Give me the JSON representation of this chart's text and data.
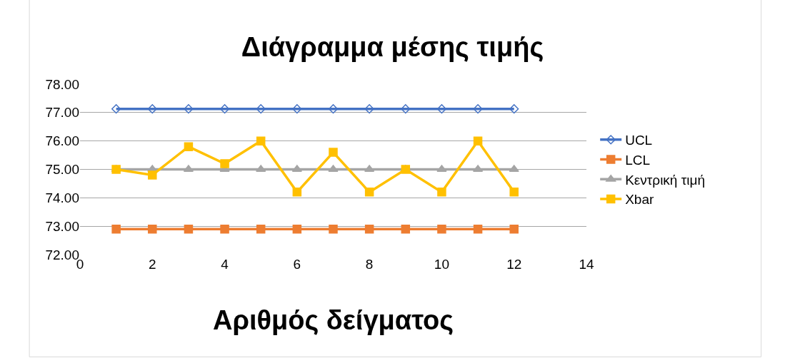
{
  "chart_data": {
    "type": "line",
    "title": "Διάγραμμα μέσης τιμής",
    "xlabel": "Αριθμός δείγματος",
    "x": [
      1,
      2,
      3,
      4,
      5,
      6,
      7,
      8,
      9,
      10,
      11,
      12
    ],
    "series": [
      {
        "name": "UCL",
        "color": "#4472c4",
        "marker": "diamond",
        "values": [
          77.13,
          77.13,
          77.13,
          77.13,
          77.13,
          77.13,
          77.13,
          77.13,
          77.13,
          77.13,
          77.13,
          77.13
        ]
      },
      {
        "name": "LCL",
        "color": "#ed7d31",
        "marker": "square",
        "values": [
          72.9,
          72.9,
          72.9,
          72.9,
          72.9,
          72.9,
          72.9,
          72.9,
          72.9,
          72.9,
          72.9,
          72.9
        ]
      },
      {
        "name": "Κεντρική τιμή",
        "color": "#a5a5a5",
        "marker": "triangle",
        "values": [
          75,
          75,
          75,
          75,
          75,
          75,
          75,
          75,
          75,
          75,
          75,
          75
        ]
      },
      {
        "name": "Xbar",
        "color": "#ffc000",
        "marker": "square",
        "values": [
          75,
          74.8,
          75.8,
          75.2,
          76,
          74.2,
          75.6,
          74.2,
          75,
          74.2,
          76,
          74.2
        ]
      }
    ],
    "xlim": [
      0,
      14
    ],
    "xticks": [
      0,
      2,
      4,
      6,
      8,
      10,
      12,
      14
    ],
    "ylim": [
      72,
      78
    ],
    "yticks": [
      {
        "value": 72,
        "label": "72.00"
      },
      {
        "value": 73,
        "label": "73.00"
      },
      {
        "value": 74,
        "label": "74.00"
      },
      {
        "value": 75,
        "label": "75.00"
      },
      {
        "value": 76,
        "label": "76.00"
      },
      {
        "value": 77,
        "label": "77.00"
      },
      {
        "value": 78,
        "label": "78.00"
      }
    ],
    "grid": "y",
    "legend": "right"
  }
}
